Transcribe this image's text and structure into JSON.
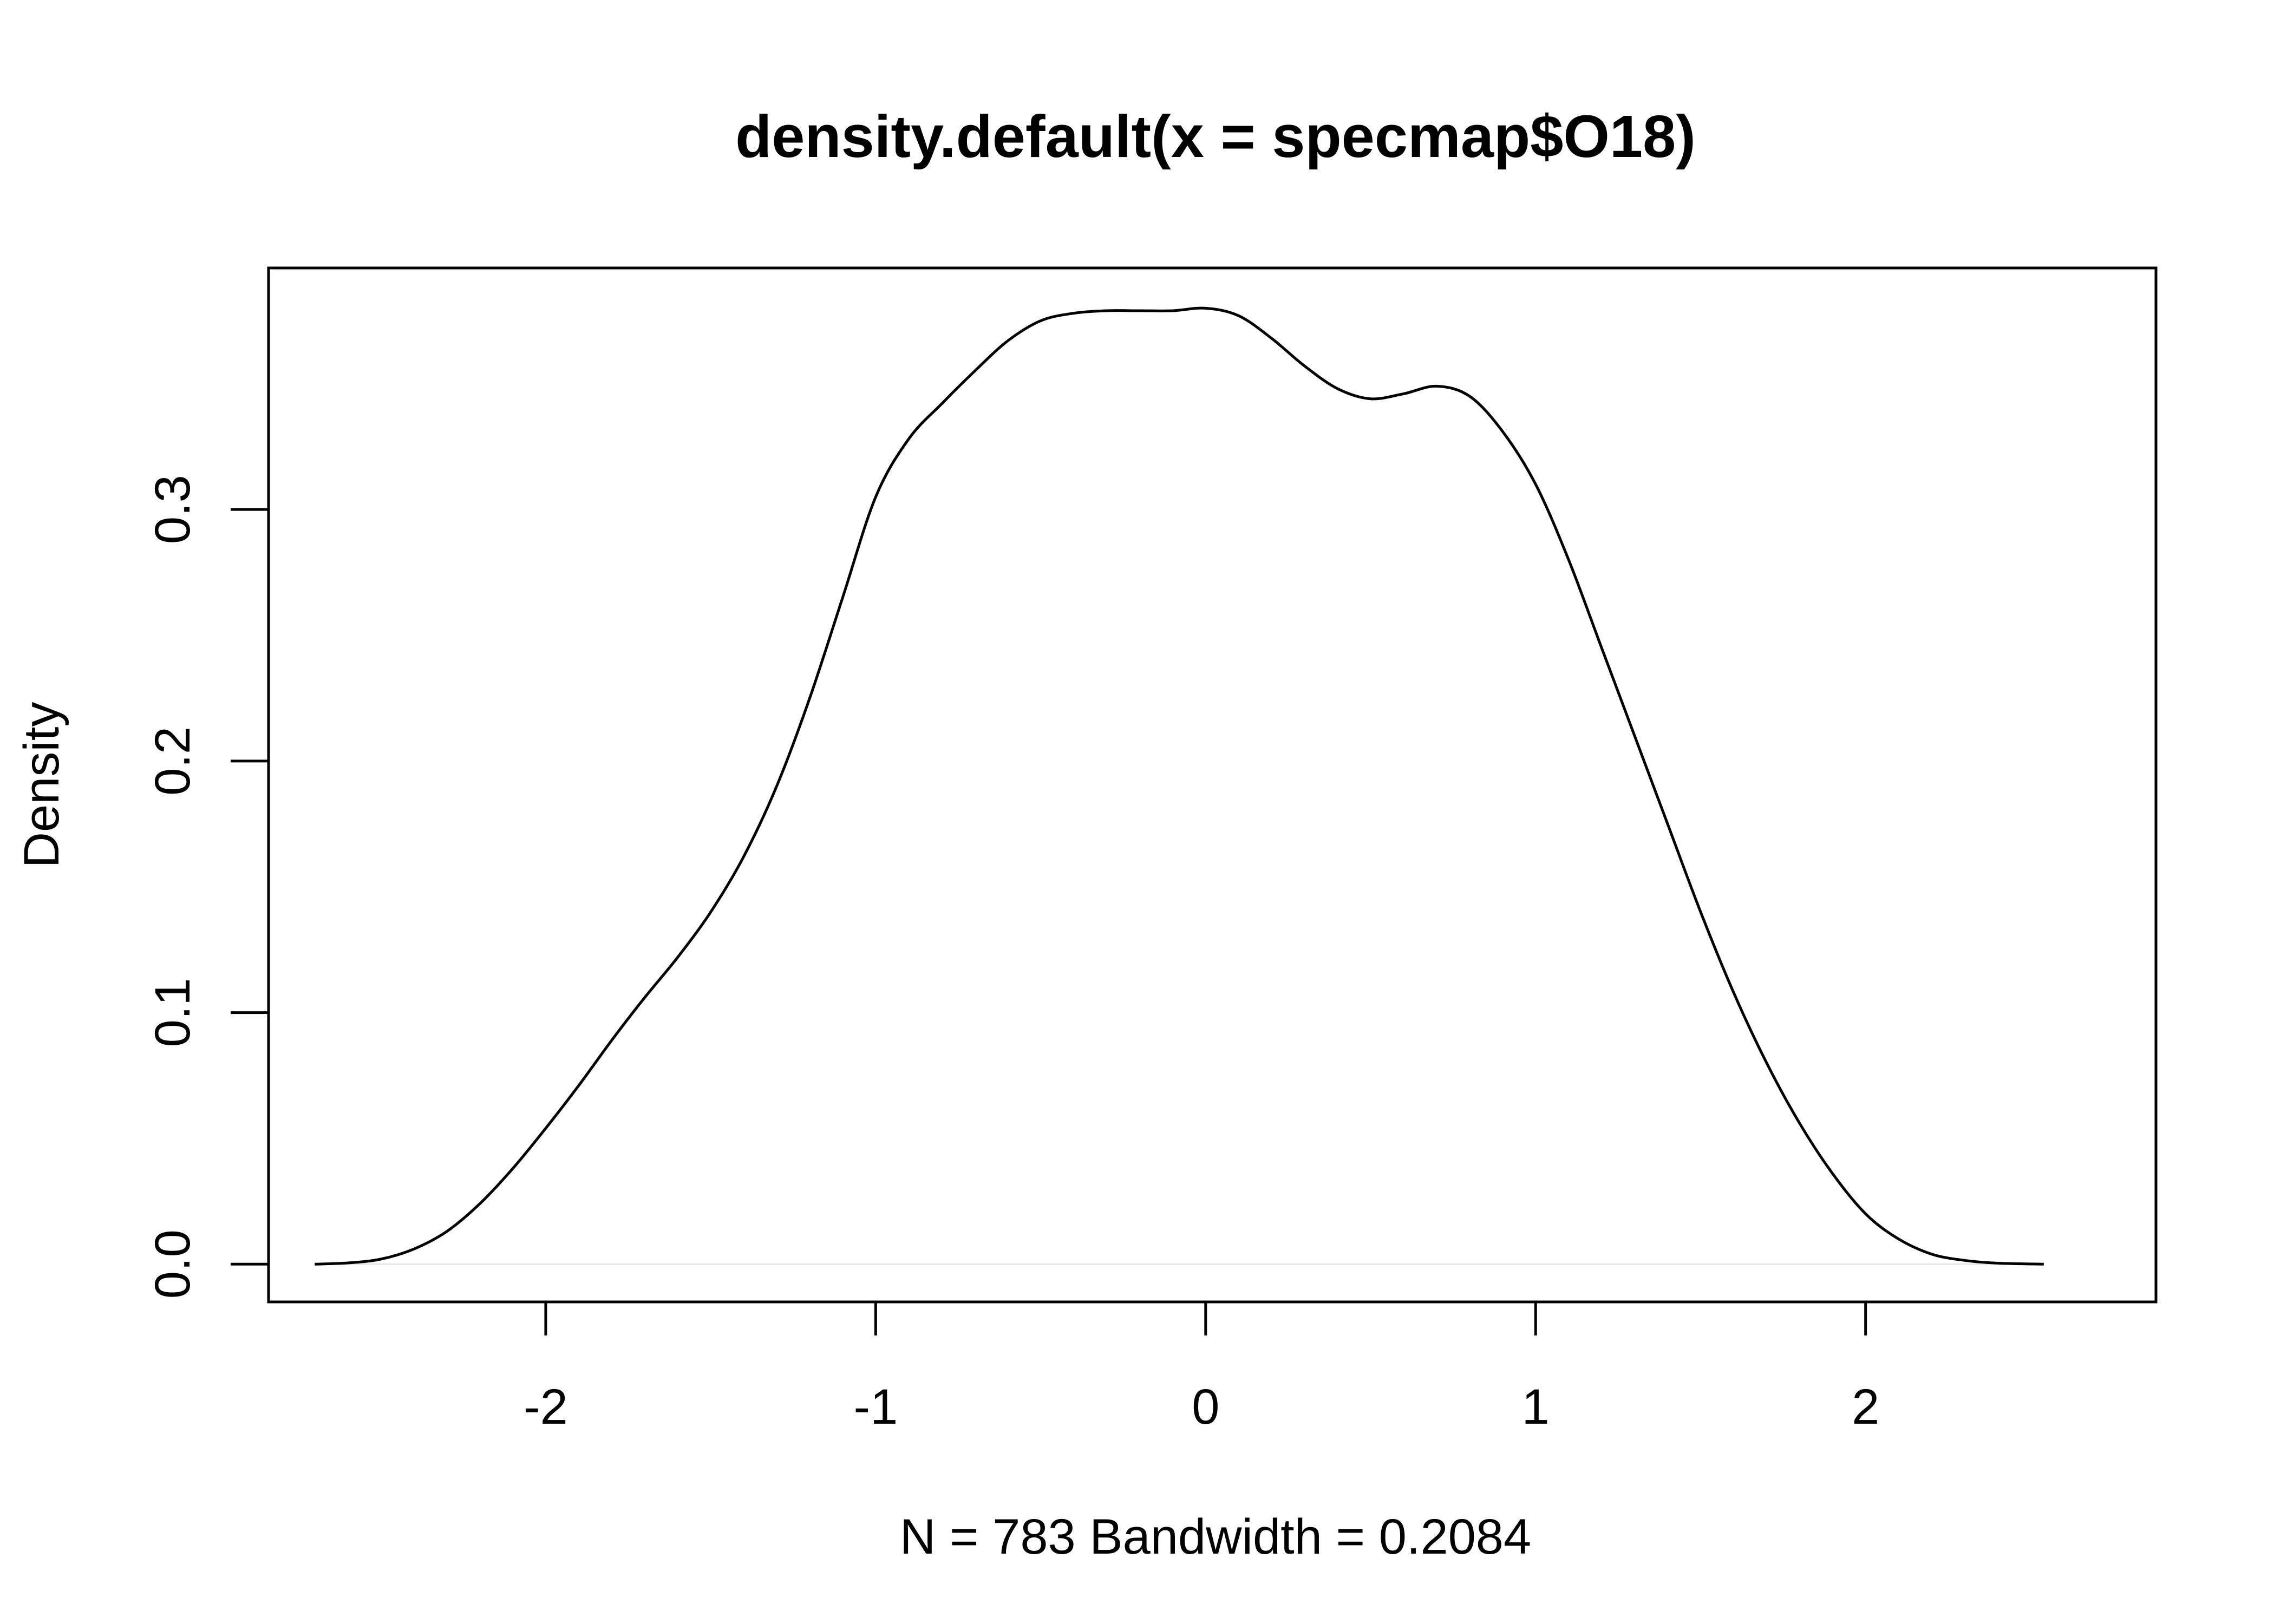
{
  "chart_data": {
    "type": "line",
    "title": "density.default(x = specmap$O18)",
    "xlabel": "N = 783   Bandwidth = 0.2084",
    "ylabel": "Density",
    "xlim": [
      -2.84,
      2.88
    ],
    "ylim": [
      -0.015,
      0.396
    ],
    "xticks": [
      -2,
      -1,
      0,
      1,
      2
    ],
    "xtick_labels": [
      "-2",
      "-1",
      "0",
      "1",
      "2"
    ],
    "yticks": [
      0.0,
      0.1,
      0.2,
      0.3
    ],
    "ytick_labels": [
      "0.0",
      "0.1",
      "0.2",
      "0.3"
    ],
    "grid": false,
    "series": [
      {
        "x": [
          -2.7,
          -2.6,
          -2.5,
          -2.4,
          -2.3,
          -2.2,
          -2.1,
          -2.0,
          -1.9,
          -1.8,
          -1.7,
          -1.6,
          -1.5,
          -1.4,
          -1.3,
          -1.2,
          -1.1,
          -1.0,
          -0.9,
          -0.8,
          -0.7,
          -0.6,
          -0.5,
          -0.4,
          -0.3,
          -0.2,
          -0.1,
          0.0,
          0.1,
          0.2,
          0.3,
          0.4,
          0.5,
          0.6,
          0.7,
          0.8,
          0.9,
          1.0,
          1.1,
          1.2,
          1.3,
          1.4,
          1.5,
          1.6,
          1.7,
          1.8,
          1.9,
          2.0,
          2.1,
          2.2,
          2.3,
          2.4,
          2.54
        ],
        "y": [
          0.0,
          0.0005,
          0.002,
          0.006,
          0.013,
          0.024,
          0.038,
          0.054,
          0.071,
          0.089,
          0.106,
          0.122,
          0.14,
          0.162,
          0.19,
          0.225,
          0.265,
          0.305,
          0.328,
          0.342,
          0.355,
          0.367,
          0.375,
          0.378,
          0.379,
          0.379,
          0.379,
          0.38,
          0.377,
          0.368,
          0.357,
          0.348,
          0.344,
          0.346,
          0.349,
          0.345,
          0.331,
          0.31,
          0.28,
          0.245,
          0.21,
          0.175,
          0.14,
          0.108,
          0.08,
          0.056,
          0.036,
          0.02,
          0.01,
          0.004,
          0.0015,
          0.0004,
          0.0
        ]
      }
    ]
  }
}
